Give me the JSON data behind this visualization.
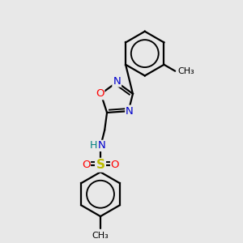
{
  "bg_color": "#e8e8e8",
  "bond_color": "#000000",
  "bond_width": 1.6,
  "atom_colors": {
    "N": "#0000cc",
    "O": "#ff0000",
    "S": "#bbbb00",
    "H": "#008080",
    "C": "#000000"
  },
  "fs": 9.5,
  "fss": 8.0
}
